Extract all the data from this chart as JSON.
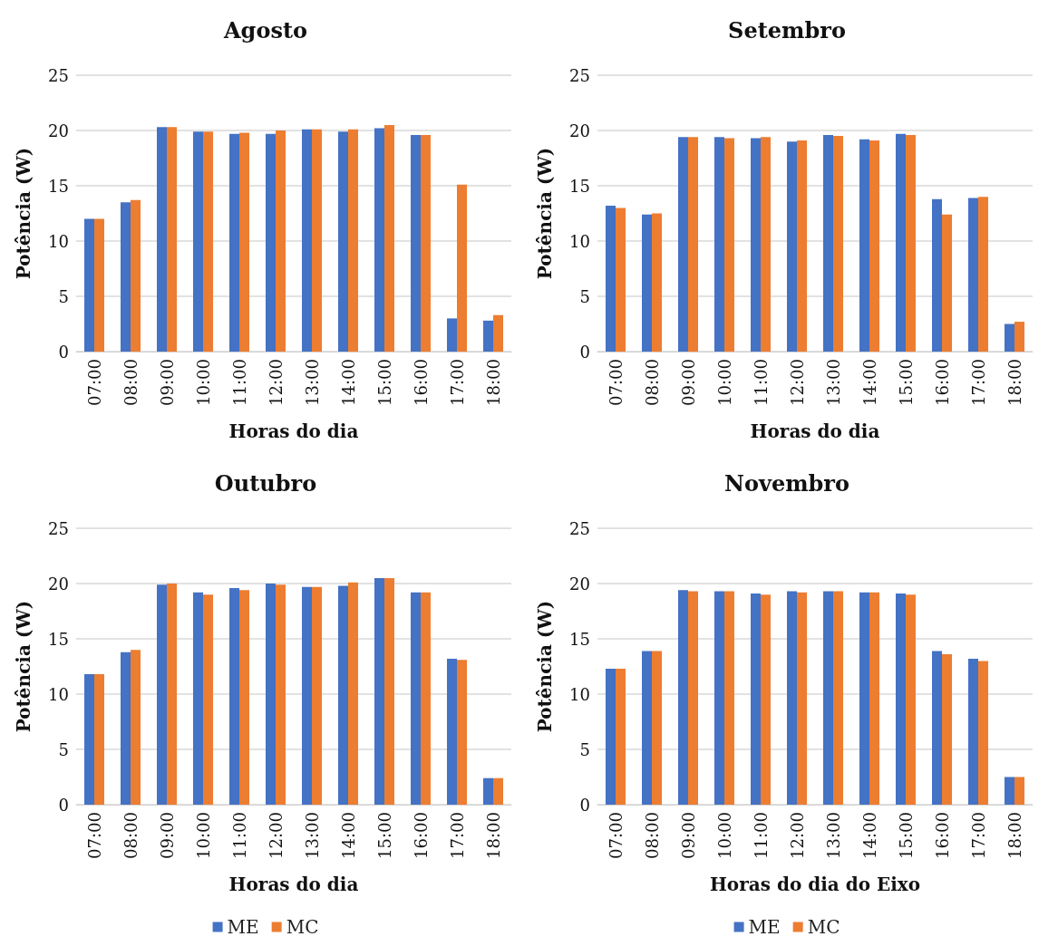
{
  "chart_data": [
    {
      "type": "bar",
      "title": "Agosto",
      "xlabel": "Horas do dia",
      "ylabel": "Potência (W)",
      "categories": [
        "07:00",
        "08:00",
        "09:00",
        "10:00",
        "11:00",
        "12:00",
        "13:00",
        "14:00",
        "15:00",
        "16:00",
        "17:00",
        "18:00"
      ],
      "series": [
        {
          "color": "#4472c4",
          "values": [
            12.0,
            13.5,
            20.3,
            19.9,
            19.7,
            19.7,
            20.1,
            19.9,
            20.2,
            19.6,
            3.0,
            2.8
          ]
        },
        {
          "color": "#ed7d31",
          "values": [
            12.0,
            13.7,
            20.3,
            19.9,
            19.8,
            20.0,
            20.1,
            20.1,
            20.5,
            19.6,
            15.1,
            3.3
          ]
        }
      ],
      "ylim": [
        0,
        25
      ],
      "yticks": [
        0,
        5,
        10,
        15,
        20,
        25
      ],
      "grid": "y",
      "legend": false
    },
    {
      "type": "bar",
      "title": "Setembro",
      "xlabel": "Horas do dia",
      "ylabel": "Potência (W)",
      "categories": [
        "07:00",
        "08:00",
        "09:00",
        "10:00",
        "11:00",
        "12:00",
        "13:00",
        "14:00",
        "15:00",
        "16:00",
        "17:00",
        "18:00"
      ],
      "series": [
        {
          "color": "#4472c4",
          "values": [
            13.2,
            12.4,
            19.4,
            19.4,
            19.3,
            19.0,
            19.6,
            19.2,
            19.7,
            13.8,
            13.9,
            2.5
          ]
        },
        {
          "color": "#ed7d31",
          "values": [
            13.0,
            12.5,
            19.4,
            19.3,
            19.4,
            19.1,
            19.5,
            19.1,
            19.6,
            12.4,
            14.0,
            2.7
          ]
        }
      ],
      "ylim": [
        0,
        25
      ],
      "yticks": [
        0,
        5,
        10,
        15,
        20,
        25
      ],
      "grid": "y",
      "legend": false
    },
    {
      "type": "bar",
      "title": "Outubro",
      "xlabel": "Horas do dia",
      "ylabel": "Potência (W)",
      "categories": [
        "07:00",
        "08:00",
        "09:00",
        "10:00",
        "11:00",
        "12:00",
        "13:00",
        "14:00",
        "15:00",
        "16:00",
        "17:00",
        "18:00"
      ],
      "series": [
        {
          "name": "ME",
          "color": "#4472c4",
          "values": [
            11.8,
            13.8,
            19.9,
            19.2,
            19.6,
            20.0,
            19.7,
            19.8,
            20.5,
            19.2,
            13.2,
            2.4
          ]
        },
        {
          "name": "MC",
          "color": "#ed7d31",
          "values": [
            11.8,
            14.0,
            20.0,
            19.0,
            19.4,
            19.9,
            19.7,
            20.1,
            20.5,
            19.2,
            13.1,
            2.4
          ]
        }
      ],
      "ylim": [
        0,
        25
      ],
      "yticks": [
        0,
        5,
        10,
        15,
        20,
        25
      ],
      "grid": "y",
      "legend": "bottom"
    },
    {
      "type": "bar",
      "title": "Novembro",
      "xlabel": "Horas do dia do Eixo",
      "ylabel": "Potência (W)",
      "categories": [
        "07:00",
        "08:00",
        "09:00",
        "10:00",
        "11:00",
        "12:00",
        "13:00",
        "14:00",
        "15:00",
        "16:00",
        "17:00",
        "18:00"
      ],
      "series": [
        {
          "name": "ME",
          "color": "#4472c4",
          "values": [
            12.3,
            13.9,
            19.4,
            19.3,
            19.1,
            19.3,
            19.3,
            19.2,
            19.1,
            13.9,
            13.2,
            2.5
          ]
        },
        {
          "name": "MC",
          "color": "#ed7d31",
          "values": [
            12.3,
            13.9,
            19.3,
            19.3,
            19.0,
            19.2,
            19.3,
            19.2,
            19.0,
            13.6,
            13.0,
            2.5
          ]
        }
      ],
      "ylim": [
        0,
        25
      ],
      "yticks": [
        0,
        5,
        10,
        15,
        20,
        25
      ],
      "grid": "y",
      "legend": "bottom"
    }
  ]
}
